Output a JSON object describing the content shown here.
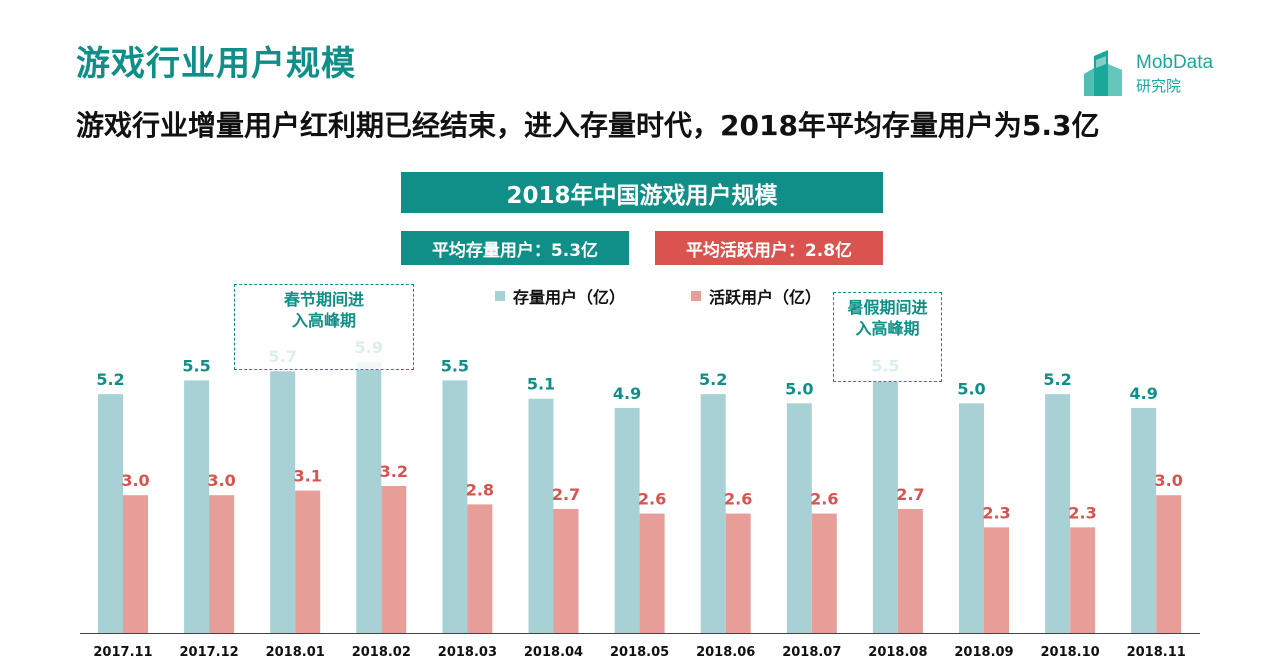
{
  "page": {
    "title": "游戏行业用户规模",
    "subtitle": "游戏行业增量用户红利期已经结束，进入存量时代，2018年平均存量用户为5.3亿"
  },
  "logo": {
    "name": "MobData",
    "sub": "研究院"
  },
  "stats": {
    "avg_stock": "平均存量用户：5.3亿",
    "avg_active": "平均活跃用户：2.8亿"
  },
  "annotations": {
    "spring": {
      "line1": "春节期间进",
      "line2": "入高峰期"
    },
    "summer": {
      "line1": "暑假期间进",
      "line2": "入高峰期"
    }
  },
  "colors": {
    "stock": "#a8d1d6",
    "active": "#e89e98",
    "stock_label": "#0f8f87",
    "active_label": "#d9534f"
  },
  "chart_data": {
    "type": "bar",
    "title": "2018年中国游戏用户规模",
    "categories": [
      "2017.11",
      "2017.12",
      "2018.01",
      "2018.02",
      "2018.03",
      "2018.04",
      "2018.05",
      "2018.06",
      "2018.07",
      "2018.08",
      "2018.09",
      "2018.10",
      "2018.11"
    ],
    "series": [
      {
        "name": "存量用户（亿）",
        "values": [
          5.2,
          5.5,
          5.7,
          5.9,
          5.5,
          5.1,
          4.9,
          5.2,
          5.0,
          5.5,
          5.0,
          5.2,
          4.9
        ]
      },
      {
        "name": "活跃用户（亿）",
        "values": [
          3.0,
          3.0,
          3.1,
          3.2,
          2.8,
          2.7,
          2.6,
          2.6,
          2.6,
          2.7,
          2.3,
          2.3,
          3.0
        ]
      }
    ],
    "ylim": [
      0,
      6.5
    ],
    "legend_position": "top-center",
    "grid": false
  }
}
